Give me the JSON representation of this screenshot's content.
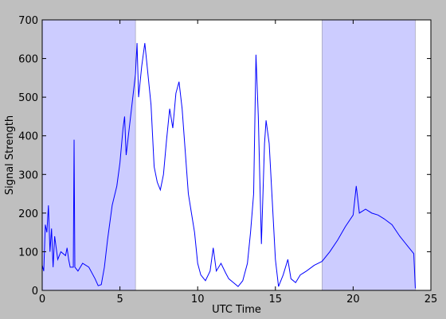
{
  "chart_data": {
    "type": "line",
    "xlabel": "UTC Time",
    "ylabel": "Signal Strength",
    "x": [
      0,
      0.1,
      0.2,
      0.3,
      0.4,
      0.5,
      0.6,
      0.7,
      0.8,
      1.0,
      1.2,
      1.5,
      1.6,
      1.7,
      1.8,
      2.0,
      2.05,
      2.1,
      2.3,
      2.6,
      3.0,
      3.4,
      3.6,
      3.8,
      4.0,
      4.2,
      4.5,
      4.8,
      5.0,
      5.2,
      5.3,
      5.4,
      5.6,
      5.8,
      6.0,
      6.1,
      6.2,
      6.4,
      6.6,
      6.8,
      7.0,
      7.2,
      7.4,
      7.6,
      7.8,
      8.0,
      8.2,
      8.4,
      8.6,
      8.8,
      9.0,
      9.2,
      9.4,
      9.6,
      9.8,
      10.0,
      10.2,
      10.5,
      10.8,
      11.0,
      11.2,
      11.5,
      11.8,
      12.0,
      12.3,
      12.6,
      12.9,
      13.2,
      13.4,
      13.6,
      13.75,
      13.9,
      14.1,
      14.3,
      14.4,
      14.6,
      14.8,
      15.0,
      15.2,
      15.5,
      15.8,
      16.0,
      16.3,
      16.6,
      17.0,
      17.5,
      18.0,
      18.5,
      19.0,
      19.5,
      20.0,
      20.2,
      20.4,
      20.8,
      21.2,
      21.6,
      22.0,
      22.5,
      23.0,
      23.5,
      23.9,
      24.0
    ],
    "series": [
      {
        "name": "signal",
        "color": "#0000ff",
        "values": [
          65,
          50,
          170,
          150,
          220,
          100,
          160,
          60,
          140,
          80,
          100,
          90,
          110,
          80,
          60,
          60,
          390,
          60,
          50,
          70,
          60,
          30,
          12,
          15,
          60,
          130,
          220,
          270,
          330,
          420,
          450,
          350,
          420,
          490,
          560,
          640,
          500,
          580,
          640,
          560,
          480,
          320,
          280,
          260,
          300,
          390,
          470,
          420,
          510,
          540,
          470,
          360,
          250,
          200,
          150,
          70,
          40,
          25,
          50,
          110,
          50,
          70,
          45,
          30,
          20,
          10,
          25,
          70,
          150,
          250,
          610,
          450,
          120,
          380,
          440,
          380,
          230,
          80,
          10,
          40,
          80,
          30,
          20,
          40,
          50,
          65,
          75,
          100,
          130,
          165,
          195,
          270,
          200,
          210,
          200,
          195,
          185,
          170,
          140,
          115,
          95,
          5
        ]
      }
    ],
    "spans": [
      [
        0,
        6
      ],
      [
        18,
        24
      ]
    ],
    "span_color": "#ccccff",
    "xlim": [
      0,
      25
    ],
    "xticks": [
      0,
      5,
      10,
      15,
      20,
      25
    ],
    "ylim": [
      0,
      700
    ],
    "yticks": [
      0,
      100,
      200,
      300,
      400,
      500,
      600,
      700
    ]
  }
}
